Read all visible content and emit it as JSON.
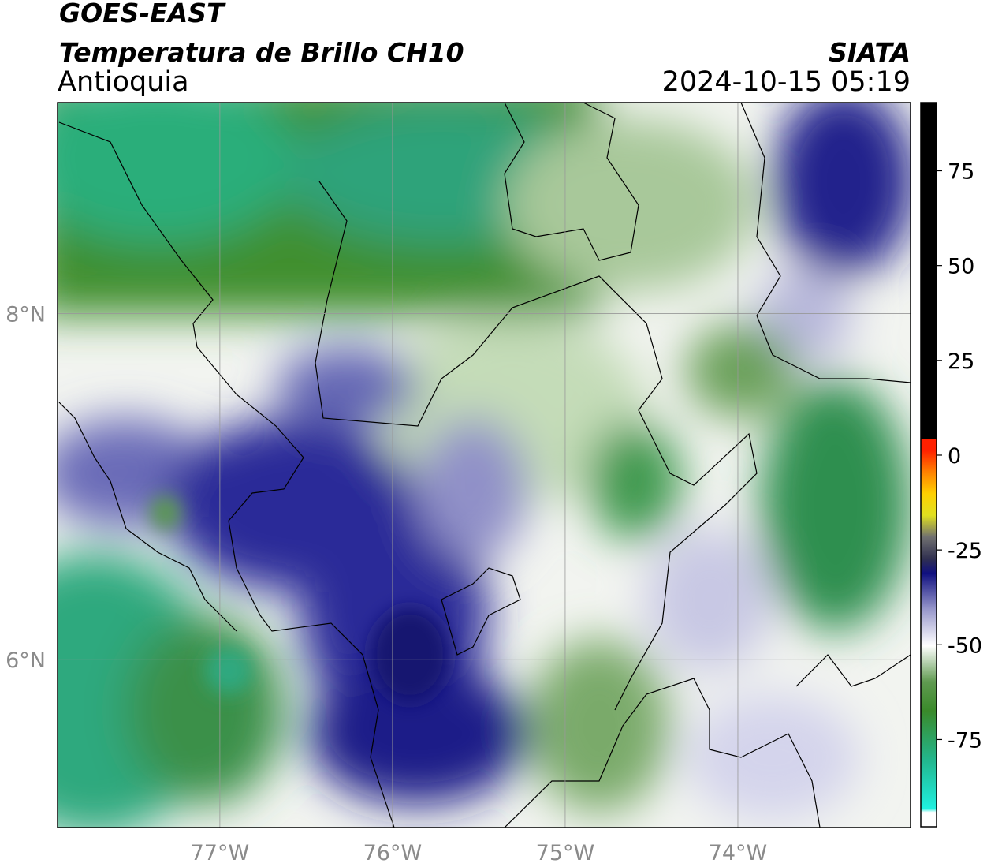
{
  "header": {
    "title": "GOES-EAST",
    "subtitle": "Temperatura de Brillo CH10",
    "region": "Antioquia",
    "source": "SIATA",
    "datetime": "2024-10-15 05:19"
  },
  "map": {
    "xlim": [
      -77.94,
      -73.0
    ],
    "ylim": [
      5.03,
      9.22
    ],
    "xticks": [
      {
        "value": -77,
        "label": "77°W"
      },
      {
        "value": -76,
        "label": "76°W"
      },
      {
        "value": -75,
        "label": "75°W"
      },
      {
        "value": -74,
        "label": "74°W"
      }
    ],
    "yticks": [
      {
        "value": 8,
        "label": "8°N"
      },
      {
        "value": 6,
        "label": "6°N"
      }
    ],
    "grid": true
  },
  "colorbar": {
    "lim": [
      -98,
      93
    ],
    "ticks": [
      75,
      50,
      25,
      0,
      -25,
      -50,
      -75
    ]
  }
}
